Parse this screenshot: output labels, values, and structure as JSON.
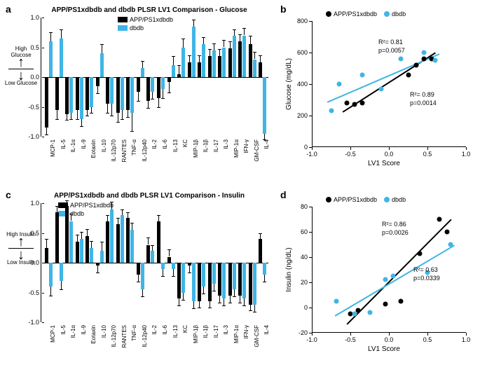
{
  "colors": {
    "black": "#000000",
    "blue": "#3fb5e6",
    "bg": "#ffffff"
  },
  "series_names": {
    "a": "APP/PS1xdbdb",
    "b": "dbdb"
  },
  "xlabels": [
    "MCP-1",
    "IL-5",
    "IL-1α",
    "IL-9",
    "Eotaxin",
    "IL-10",
    "IL-12p70",
    "RANTES",
    "TNF-α",
    "IL-12p40",
    "IL-2",
    "IL-6",
    "IL-13",
    "KC",
    "MIP-1β",
    "IL-1β",
    "IL-17",
    "IL-3",
    "MIP-1α",
    "IFN-γ",
    "GM-CSF",
    "IL-4"
  ],
  "panel_a": {
    "title": "APP/PS1xdbdb and dbdb PLSR LV1 Comparison - Glucose",
    "ylim": [
      -1.0,
      1.0
    ],
    "yticks": [
      -1.0,
      -0.5,
      0.0,
      0.5,
      1.0
    ],
    "arrow": {
      "top": "High Glucose",
      "bottom": "Low Glucose"
    },
    "app": [
      -0.85,
      -0.55,
      -0.62,
      -0.55,
      -0.55,
      -0.15,
      -0.45,
      -0.6,
      -0.55,
      -0.25,
      -0.4,
      -0.35,
      -0.08,
      0.05,
      0.25,
      0.25,
      0.35,
      0.35,
      0.48,
      0.6,
      0.55,
      0.25
    ],
    "app_err": [
      0.12,
      0.15,
      0.1,
      0.15,
      0.1,
      0.12,
      0.15,
      0.15,
      0.12,
      0.15,
      0.12,
      0.15,
      0.18,
      0.15,
      0.12,
      0.12,
      0.12,
      0.12,
      0.12,
      0.12,
      0.15,
      0.12
    ],
    "db": [
      0.6,
      0.65,
      -0.6,
      -0.7,
      -0.5,
      0.4,
      -0.45,
      -0.55,
      -0.6,
      0.15,
      -0.25,
      -0.2,
      0.2,
      0.5,
      0.85,
      0.55,
      0.45,
      0.5,
      0.7,
      0.7,
      0.3,
      -0.95
    ],
    "db_err": [
      0.15,
      0.15,
      0.1,
      0.12,
      0.1,
      0.15,
      0.2,
      0.15,
      0.3,
      0.12,
      0.12,
      0.15,
      0.15,
      0.15,
      0.12,
      0.12,
      0.12,
      0.12,
      0.1,
      0.12,
      0.12,
      0.1
    ]
  },
  "panel_c": {
    "title": "APP/PS1xdbdb and dbdb PLSR LV1 Comparison - Insulin",
    "ylim": [
      -1.0,
      1.0
    ],
    "yticks": [
      -1.0,
      -0.5,
      0.0,
      0.5,
      1.0
    ],
    "arrow": {
      "top": "High Insulin",
      "bottom": "Low Insulin"
    },
    "app": [
      0.25,
      0.85,
      0.95,
      0.35,
      0.45,
      -0.05,
      0.7,
      0.65,
      0.75,
      -0.2,
      0.3,
      0.7,
      0.1,
      -0.6,
      -0.05,
      -0.65,
      -0.65,
      -0.55,
      -0.55,
      -0.55,
      -0.7,
      0.4
    ],
    "app_err": [
      0.15,
      0.1,
      0.1,
      0.12,
      0.12,
      0.12,
      0.1,
      0.1,
      0.1,
      0.12,
      0.12,
      0.1,
      0.12,
      0.12,
      0.12,
      0.1,
      0.1,
      0.12,
      0.12,
      0.12,
      0.1,
      0.1
    ],
    "db": [
      -0.4,
      -0.3,
      0.7,
      0.4,
      0.25,
      0.2,
      0.9,
      0.8,
      0.55,
      -0.45,
      0.2,
      -0.1,
      -0.1,
      -0.5,
      -0.65,
      -0.4,
      -0.35,
      -0.6,
      -0.45,
      -0.6,
      -0.7,
      -0.2
    ],
    "db_err": [
      0.15,
      0.15,
      0.12,
      0.12,
      0.12,
      0.15,
      0.12,
      0.1,
      0.12,
      0.12,
      0.1,
      0.12,
      0.12,
      0.12,
      0.12,
      0.12,
      0.12,
      0.12,
      0.12,
      0.12,
      0.12,
      0.12
    ]
  },
  "panel_b": {
    "xlabel": "LV1 Score",
    "ylabel": "Glucose (mg/dL)",
    "xlim": [
      -1.0,
      1.0
    ],
    "ylim": [
      0,
      800
    ],
    "xticks": [
      -1.0,
      -0.5,
      0.0,
      0.5,
      1.0
    ],
    "yticks": [
      0,
      200,
      400,
      600,
      800
    ],
    "app_pts": [
      [
        -0.55,
        280
      ],
      [
        -0.45,
        270
      ],
      [
        -0.35,
        280
      ],
      [
        0.25,
        460
      ],
      [
        0.35,
        520
      ],
      [
        0.45,
        560
      ],
      [
        0.55,
        560
      ]
    ],
    "db_pts": [
      [
        -0.75,
        230
      ],
      [
        -0.65,
        400
      ],
      [
        -0.35,
        460
      ],
      [
        -0.1,
        370
      ],
      [
        0.15,
        560
      ],
      [
        0.45,
        600
      ],
      [
        0.6,
        550
      ]
    ],
    "app_line": {
      "x1": -0.6,
      "y1": 225,
      "x2": 0.6,
      "y2": 600
    },
    "db_line": {
      "x1": -0.8,
      "y1": 290,
      "x2": 0.65,
      "y2": 595
    },
    "app_stats": {
      "r2": "R²= 0.89",
      "p": "p=0.0014"
    },
    "db_stats": {
      "r2": "R²= 0.81",
      "p": "p=0.0057"
    }
  },
  "panel_d": {
    "xlabel": "LV1 Score",
    "ylabel": "Insulin (ng/dL)",
    "xlim": [
      -1.0,
      1.0
    ],
    "ylim": [
      -20,
      80
    ],
    "xticks": [
      -1.0,
      -0.5,
      0.0,
      0.5,
      1.0
    ],
    "yticks": [
      -20,
      0,
      20,
      40,
      60,
      80
    ],
    "app_pts": [
      [
        -0.5,
        -5
      ],
      [
        -0.4,
        -2
      ],
      [
        -0.05,
        3
      ],
      [
        0.15,
        5
      ],
      [
        0.4,
        43
      ],
      [
        0.65,
        70
      ],
      [
        0.75,
        60
      ]
    ],
    "db_pts": [
      [
        -0.68,
        5
      ],
      [
        -0.45,
        -5
      ],
      [
        -0.25,
        -4
      ],
      [
        -0.05,
        22
      ],
      [
        0.05,
        25
      ],
      [
        0.5,
        28
      ],
      [
        0.8,
        50
      ]
    ],
    "app_line": {
      "x1": -0.55,
      "y1": -13,
      "x2": 0.8,
      "y2": 70
    },
    "db_line": {
      "x1": -0.7,
      "y1": -6,
      "x2": 0.85,
      "y2": 50
    },
    "app_stats": {
      "r2": "R²= 0.86",
      "p": "p=0.0026"
    },
    "db_stats": {
      "r2": "R²= 0.63",
      "p": "p=0.0339"
    }
  }
}
